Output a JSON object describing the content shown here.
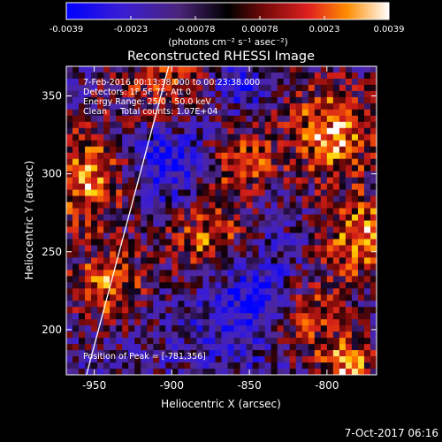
{
  "chart_data": {
    "type": "heatmap",
    "title": "Reconstructed RHESSI Image",
    "xlabel": "Heliocentric X (arcsec)",
    "ylabel": "Heliocentric Y (arcsec)",
    "xlim": [
      -968,
      -768
    ],
    "ylim": [
      171,
      369
    ],
    "x_ticks": [
      -950,
      -900,
      -850,
      -800
    ],
    "y_ticks": [
      200,
      250,
      300,
      350
    ],
    "colorbar": {
      "range": [
        -0.0039,
        0.0039
      ],
      "ticks": [
        "-0.0039",
        "-0.0023",
        "-0.00078",
        "0.00078",
        "0.0023",
        "0.0039"
      ],
      "units_label": "(photons cm⁻² s⁻¹ asec⁻²)"
    },
    "annotations": [
      "7-Feb-2016 00:13:38.000 to 00:23:38.000",
      "Detectors: 1F 5F 7F, Att 0",
      "Energy Range: 25.0 - 50.0 keV",
      "Clean     Total counts: 1.07E+04"
    ],
    "peak_label": "Position of Peak = [-781,356]",
    "peak_position": [
      -781,
      356
    ],
    "limb_line": {
      "x": [
        -955,
        -902
      ],
      "y": [
        171,
        369
      ]
    }
  },
  "footer": {
    "date_stamp": "7-Oct-2017 06:16"
  },
  "colors": {
    "background": "#000000",
    "axes": "#ffffff",
    "colormap": [
      "#0000ff",
      "#3c1ed2",
      "#5a2e9a",
      "#3a1460",
      "#000000",
      "#6e0a0a",
      "#c81e1e",
      "#ff6400",
      "#ffc800",
      "#ffffff"
    ]
  }
}
